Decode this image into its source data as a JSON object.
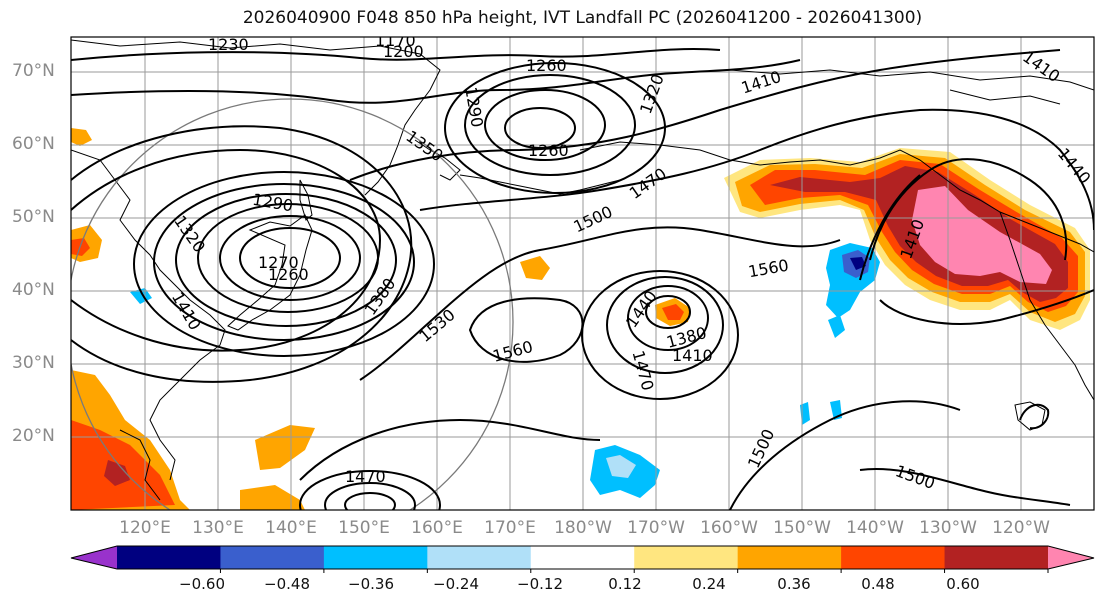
{
  "title": "2026040900 F048 850 hPa height, IVT Landfall PC (2026041200 - 2026041300)",
  "lat_labels": [
    "70°N",
    "60°N",
    "50°N",
    "40°N",
    "30°N",
    "20°N"
  ],
  "lon_labels": [
    "120°E",
    "130°E",
    "140°E",
    "150°E",
    "160°E",
    "170°E",
    "180°W",
    "170°W",
    "160°W",
    "150°W",
    "140°W",
    "130°W",
    "120°W"
  ],
  "colorbar": {
    "ticks": [
      "−0.60",
      "−0.48",
      "−0.36",
      "−0.24",
      "−0.12",
      "0.12",
      "0.24",
      "0.36",
      "0.48",
      "0.60"
    ],
    "colors": [
      "#9932cc",
      "#000080",
      "#3a5fcd",
      "#00bfff",
      "#b0e0f8",
      "#ffffff",
      "#ffe680",
      "#ffa500",
      "#ff4500",
      "#b22222",
      "#ff85b0"
    ]
  },
  "contour_labels": {
    "c1230": "1230",
    "c1170": "1170",
    "c1200": "1200",
    "c1260a": "1260",
    "c1320a": "1320",
    "c1410a": "1410",
    "c1410b": "1410",
    "c1290a": "1290",
    "c1350": "1350",
    "c1260b": "1260",
    "c1470a": "1470",
    "c1440a": "1440",
    "c1290b": "1290",
    "c1320b": "1320",
    "c1500a": "1500",
    "c1270": "1270",
    "c1260c": "1260",
    "c1380a": "1380",
    "c1560a": "1560",
    "c1410c": "1410",
    "c1410d": "1410",
    "c1530": "1530",
    "c1440b": "1440",
    "c1560b": "1560",
    "c1380b": "1380",
    "c1410e": "1410",
    "c1470b": "1470",
    "c1500b": "1500",
    "c1470c": "1470",
    "c1500c": "1500"
  }
}
